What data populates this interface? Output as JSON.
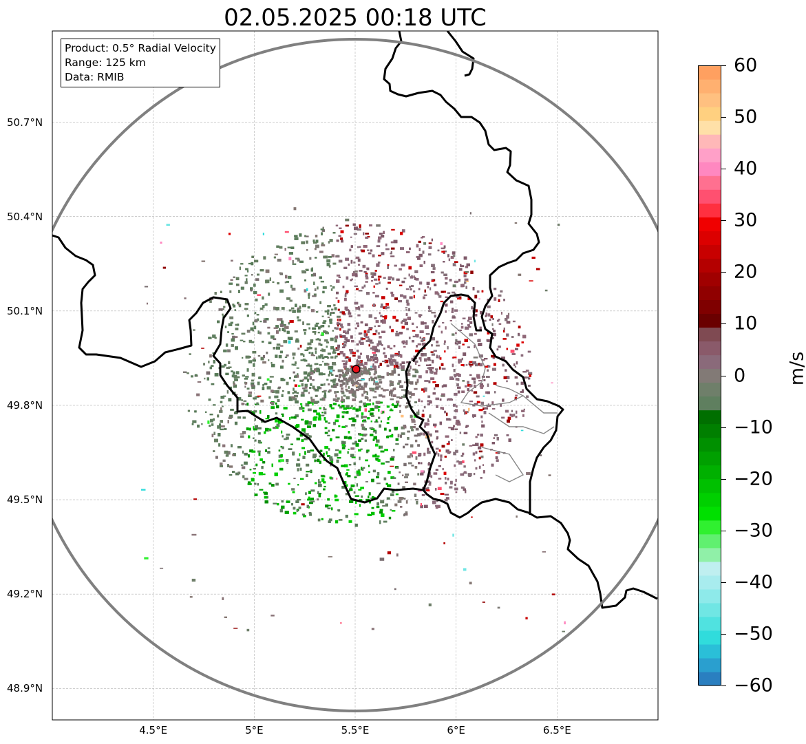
{
  "title": "02.05.2025 00:18 UTC",
  "info": {
    "product": "Product: 0.5° Radial Velocity",
    "range": "Range: 125 km",
    "data": "Data: RMIB"
  },
  "lat_ticks": [
    {
      "value": 50.7,
      "label": "50.7°N"
    },
    {
      "value": 50.4,
      "label": "50.4°N"
    },
    {
      "value": 50.1,
      "label": "50.1°N"
    },
    {
      "value": 49.8,
      "label": "49.8°N"
    },
    {
      "value": 49.5,
      "label": "49.5°N"
    },
    {
      "value": 49.2,
      "label": "49.2°N"
    },
    {
      "value": 48.9,
      "label": "48.9°N"
    }
  ],
  "lon_ticks": [
    {
      "value": 4.5,
      "label": "4.5°E"
    },
    {
      "value": 5.0,
      "label": "5°E"
    },
    {
      "value": 5.5,
      "label": "5.5°E"
    },
    {
      "value": 6.0,
      "label": "6°E"
    },
    {
      "value": 6.5,
      "label": "6.5°E"
    }
  ],
  "extent": {
    "lon_min": 4.0,
    "lon_max": 7.0,
    "lat_min": 48.8,
    "lat_max": 50.99
  },
  "radar_site": {
    "lon": 5.505,
    "lat": 49.915
  },
  "colorbar": {
    "label": "m/s",
    "min": -60,
    "max": 60,
    "ticks": [
      {
        "value": 60,
        "label": "60"
      },
      {
        "value": 50,
        "label": "50"
      },
      {
        "value": 40,
        "label": "40"
      },
      {
        "value": 30,
        "label": "30"
      },
      {
        "value": 20,
        "label": "20"
      },
      {
        "value": 10,
        "label": "10"
      },
      {
        "value": 0,
        "label": "0"
      },
      {
        "value": -10,
        "label": "−10"
      },
      {
        "value": -20,
        "label": "−20"
      },
      {
        "value": -30,
        "label": "−30"
      },
      {
        "value": -40,
        "label": "−40"
      },
      {
        "value": -50,
        "label": "−50"
      },
      {
        "value": -60,
        "label": "−60"
      }
    ],
    "colors": [
      "#2a7fc0",
      "#2a9fcf",
      "#2abfd8",
      "#30dcdc",
      "#50e2e0",
      "#70e6e4",
      "#8eeaea",
      "#a8ecee",
      "#bfeff0",
      "#90f0a8",
      "#60f070",
      "#30f030",
      "#00e000",
      "#00d000",
      "#00c000",
      "#00b000",
      "#00a000",
      "#009000",
      "#007f00",
      "#006f00",
      "#5f7f5f",
      "#6f7f6a",
      "#827a76",
      "#8a6a7a",
      "#8a5a6a",
      "#7f4a52",
      "#6a0000",
      "#7f0000",
      "#900000",
      "#a00000",
      "#b40000",
      "#c80000",
      "#dc0000",
      "#f00000",
      "#ff3040",
      "#ff5070",
      "#ff7090",
      "#ff88c0",
      "#ffa0c8",
      "#ffb8b8",
      "#ffe0a8",
      "#ffd080",
      "#ffc080",
      "#ffb070",
      "#ffa060"
    ]
  }
}
